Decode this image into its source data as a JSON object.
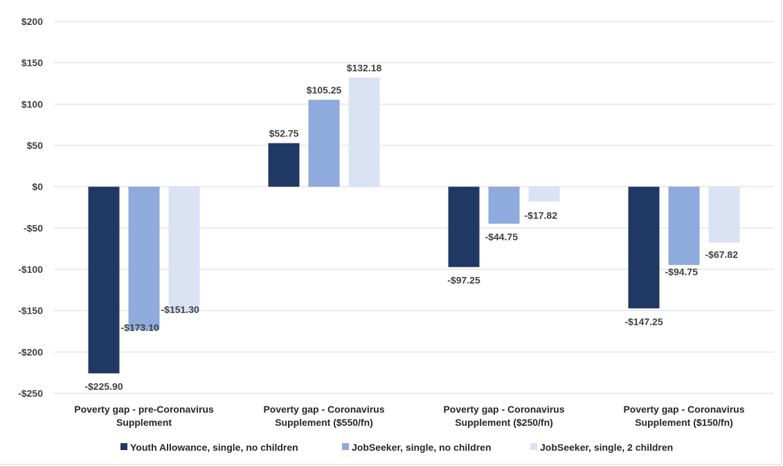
{
  "chart_data": {
    "type": "bar",
    "title": "",
    "xlabel": "",
    "ylabel": "",
    "ylim": [
      -250,
      200
    ],
    "y_ticks": [
      200,
      150,
      100,
      50,
      0,
      -50,
      -100,
      -150,
      -200,
      -250
    ],
    "y_tick_labels": [
      "$200",
      "$150",
      "$100",
      "$50",
      "$0",
      "-$50",
      "-$100",
      "-$150",
      "-$200",
      "-$250"
    ],
    "grid": true,
    "legend_position": "bottom",
    "categories": [
      [
        "Poverty gap - pre-Coronavirus",
        "Supplement"
      ],
      [
        "Poverty gap -  Coronavirus",
        "Supplement ($550/fn)"
      ],
      [
        "Poverty gap -  Coronavirus",
        "Supplement ($250/fn)"
      ],
      [
        "Poverty gap - Coronavirus",
        "Supplement ($150/fn)"
      ]
    ],
    "series": [
      {
        "name": "Youth Allowance, single, no children",
        "color": "#203864",
        "values": [
          -225.9,
          52.75,
          -97.25,
          -147.25
        ],
        "labels": [
          "-$225.90",
          "$52.75",
          "-$97.25",
          "-$147.25"
        ]
      },
      {
        "name": "JobSeeker, single, no children",
        "color": "#8faadc",
        "values": [
          -173.1,
          105.25,
          -44.75,
          -94.75
        ],
        "labels": [
          "-$173.10",
          "$105.25",
          "-$44.75",
          "-$94.75"
        ]
      },
      {
        "name": "JobSeeker, single, 2 children",
        "color": "#dae3f3",
        "values": [
          -151.3,
          132.18,
          -17.82,
          -67.82
        ],
        "labels": [
          "-$151.30",
          "$132.18",
          "-$17.82",
          "-$67.82"
        ]
      }
    ]
  }
}
